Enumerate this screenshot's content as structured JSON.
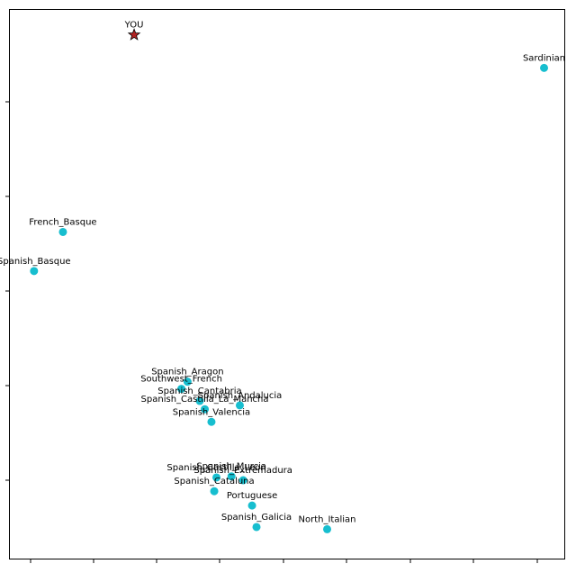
{
  "chart_data": {
    "type": "scatter",
    "title": "",
    "xlabel": "",
    "ylabel": "",
    "xlim": [
      0,
      1
    ],
    "ylim": [
      0,
      1
    ],
    "grid": false,
    "legend": "none",
    "colors": {
      "point": "#17becf",
      "you_star": "#b22222",
      "you_star_edge": "#000000",
      "axes": "#000000"
    },
    "you": {
      "label": "YOU",
      "x": 0.225,
      "y": 0.953
    },
    "points": [
      {
        "label": "Sardinian",
        "x": 0.962,
        "y": 0.893
      },
      {
        "label": "French_Basque",
        "x": 0.097,
        "y": 0.595
      },
      {
        "label": "Spanish_Basque",
        "x": 0.045,
        "y": 0.524
      },
      {
        "label": "Spanish_Aragon",
        "x": 0.321,
        "y": 0.323
      },
      {
        "label": "Southwest_French",
        "x": 0.31,
        "y": 0.31
      },
      {
        "label": "Spanish_Cantabria",
        "x": 0.343,
        "y": 0.288
      },
      {
        "label": "Spanish_Andalucia",
        "x": 0.415,
        "y": 0.28
      },
      {
        "label": "Spanish_Castilla_La_Mancha",
        "x": 0.352,
        "y": 0.273
      },
      {
        "label": "Spanish_Valencia",
        "x": 0.364,
        "y": 0.25
      },
      {
        "label": "Spanish_Castilla_Leon",
        "x": 0.373,
        "y": 0.149
      },
      {
        "label": "Spanish_Murcia",
        "x": 0.4,
        "y": 0.151
      },
      {
        "label": "Spanish_Extremadura",
        "x": 0.421,
        "y": 0.144
      },
      {
        "label": "Spanish_Cataluna",
        "x": 0.369,
        "y": 0.124
      },
      {
        "label": "Portuguese",
        "x": 0.437,
        "y": 0.098
      },
      {
        "label": "Spanish_Galicia",
        "x": 0.445,
        "y": 0.059
      },
      {
        "label": "North_Italian",
        "x": 0.572,
        "y": 0.055
      }
    ]
  }
}
